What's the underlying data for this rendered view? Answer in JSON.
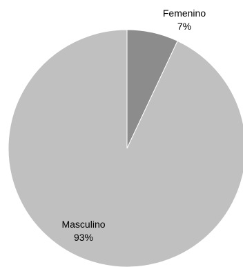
{
  "chart_data": {
    "type": "pie",
    "categories": [
      "Femenino",
      "Masculino"
    ],
    "values": [
      7,
      93
    ],
    "value_labels": [
      "7%",
      "93%"
    ],
    "colors": [
      "#8c8c8c",
      "#c0c0c0"
    ],
    "start_angle_deg": 0,
    "direction": "clockwise",
    "legend": "none"
  }
}
